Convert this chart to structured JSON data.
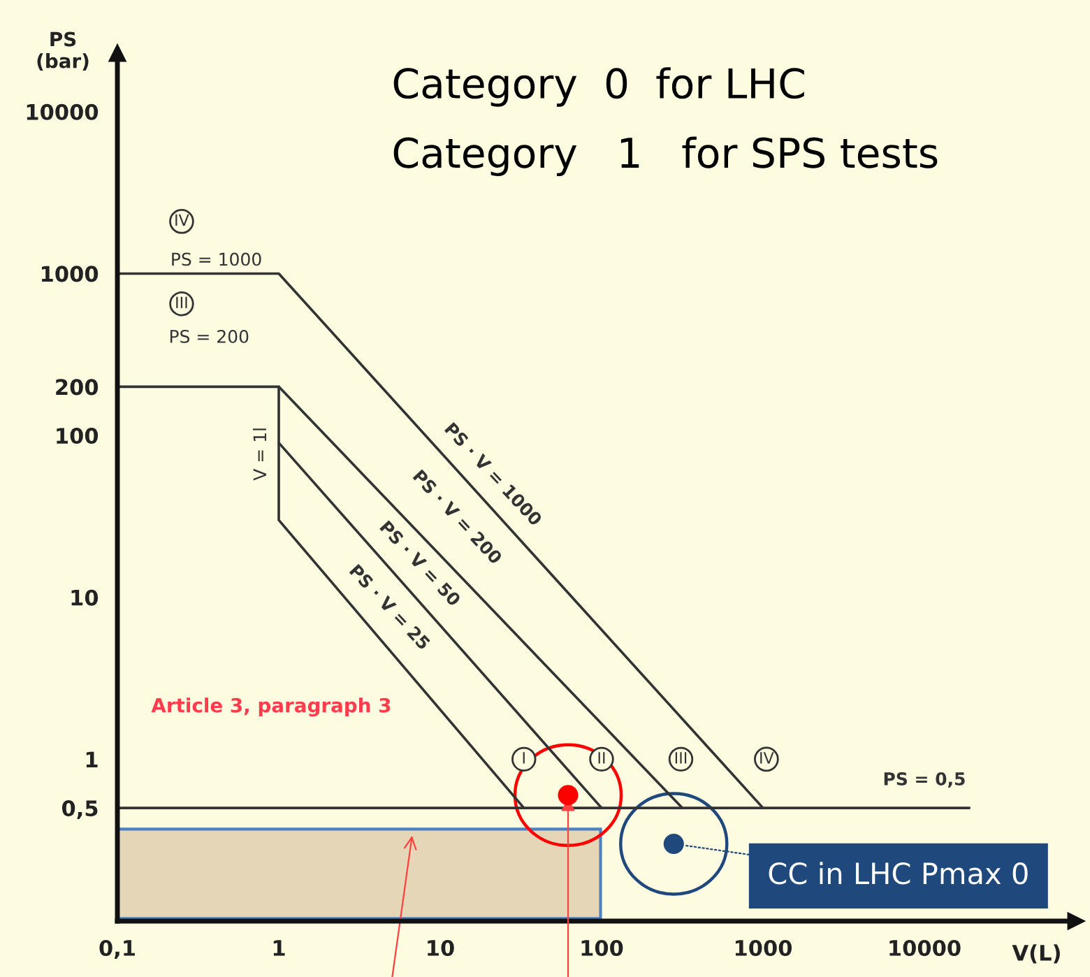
{
  "chart_data": {
    "type": "line",
    "xlabel": "V(L)",
    "ylabel": "PS\n(bar)",
    "log": "xy",
    "xlim": [
      0.1,
      87000
    ],
    "ylim": [
      0.1,
      23000
    ],
    "xticks": [
      {
        "value": 0.1,
        "label": "0,1"
      },
      1,
      10,
      100,
      1000,
      10000
    ],
    "yticks": [
      {
        "value": 0.5,
        "label": "0,5"
      },
      1,
      10,
      100,
      200,
      1000,
      10000
    ],
    "series": [
      {
        "color": "#333333",
        "x": [
          0.1,
          1,
          1000
        ],
        "values": [
          1000,
          1000,
          0.5
        ]
      },
      {
        "color": "#333333",
        "x": [
          0.1,
          1,
          316
        ],
        "values": [
          200,
          200,
          0.5
        ]
      },
      {
        "color": "#333333",
        "x": [
          1,
          1,
          33
        ],
        "values": [
          200,
          30,
          0.5
        ]
      },
      {
        "color": "#333333",
        "x": [
          1,
          100
        ],
        "values": [
          90,
          0.5
        ]
      },
      {
        "color": "#333333",
        "x": [
          0.1,
          19000
        ],
        "values": [
          0.5,
          0.5
        ]
      },
      {
        "type": "scatter",
        "color": "#ff0000",
        "x": [
          62
        ],
        "values": [
          0.6
        ]
      },
      {
        "type": "scatter",
        "color": "#1f497d",
        "x": [
          280
        ],
        "values": [
          0.3
        ]
      }
    ],
    "annotations": [
      "Category  0  for LHC",
      "Category   1   for SPS tests",
      {
        "text": "IV",
        "x": 0.25,
        "y": 2100
      },
      "PS = 1000",
      {
        "text": "III",
        "x": 0.25,
        "y": 650
      },
      "PS = 200",
      "V = 1l",
      "PS · V = 1000",
      "PS · V = 200",
      "PS · V = 50",
      "PS · V = 25",
      "Article 3, paragraph 3",
      {
        "text": "I",
        "x": 33,
        "y": 1
      },
      {
        "text": "II",
        "x": 100,
        "y": 1
      },
      {
        "text": "III",
        "x": 310,
        "y": 1
      },
      {
        "text": "IV",
        "x": 1050,
        "y": 1
      },
      "PS = 0,5",
      {
        "text": "CC in LHC Pmax 0",
        "x": 280,
        "y": 0.3
      }
    ]
  }
}
